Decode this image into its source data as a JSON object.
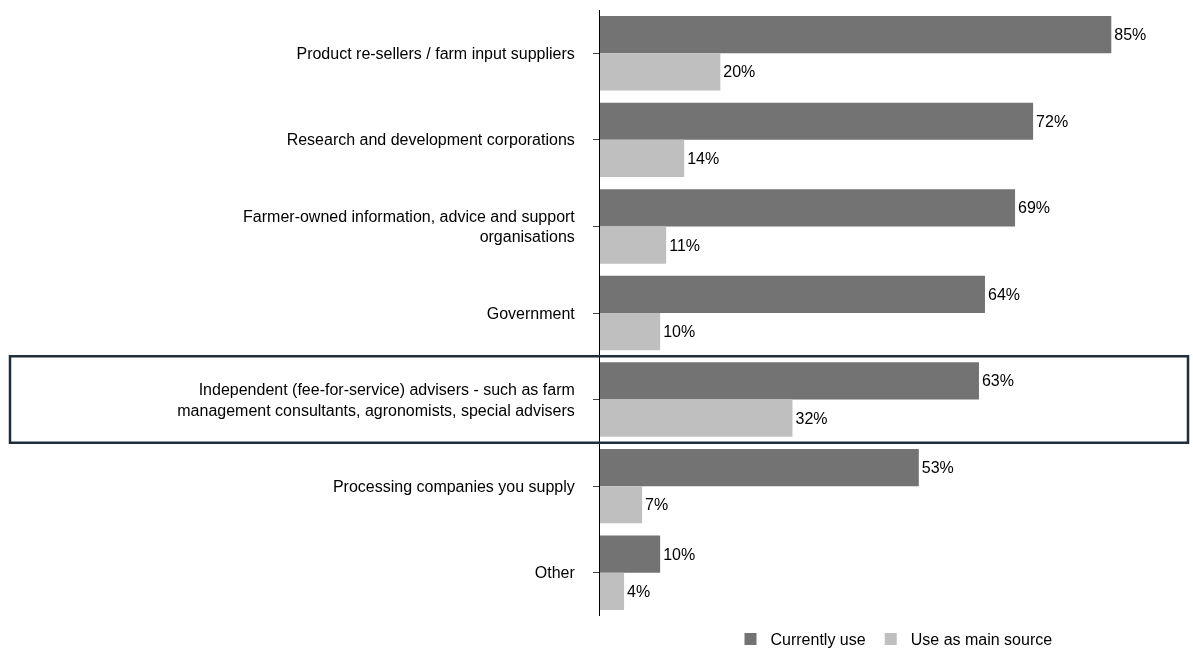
{
  "chart_data": {
    "type": "bar",
    "orientation": "horizontal",
    "categories": [
      "Product re-sellers / farm input suppliers",
      "Research and development corporations",
      "Farmer-owned information, advice and support organisations",
      "Government",
      "Independent (fee-for-service) advisers - such as farm management consultants, agronomists, special advisers",
      "Processing companies you supply",
      "Other"
    ],
    "series": [
      {
        "name": "Currently use",
        "color": "#737373",
        "values": [
          85,
          72,
          69,
          64,
          63,
          53,
          10
        ],
        "value_labels": [
          "85%",
          "72%",
          "69%",
          "64%",
          "63%",
          "53%",
          "10%"
        ]
      },
      {
        "name": "Use as main source",
        "color": "#bfbfbf",
        "values": [
          20,
          14,
          11,
          10,
          32,
          7,
          4
        ],
        "value_labels": [
          "20%",
          "14%",
          "11%",
          "10%",
          "32%",
          "7%",
          "4%"
        ]
      }
    ],
    "legend": "bottom"
  }
}
